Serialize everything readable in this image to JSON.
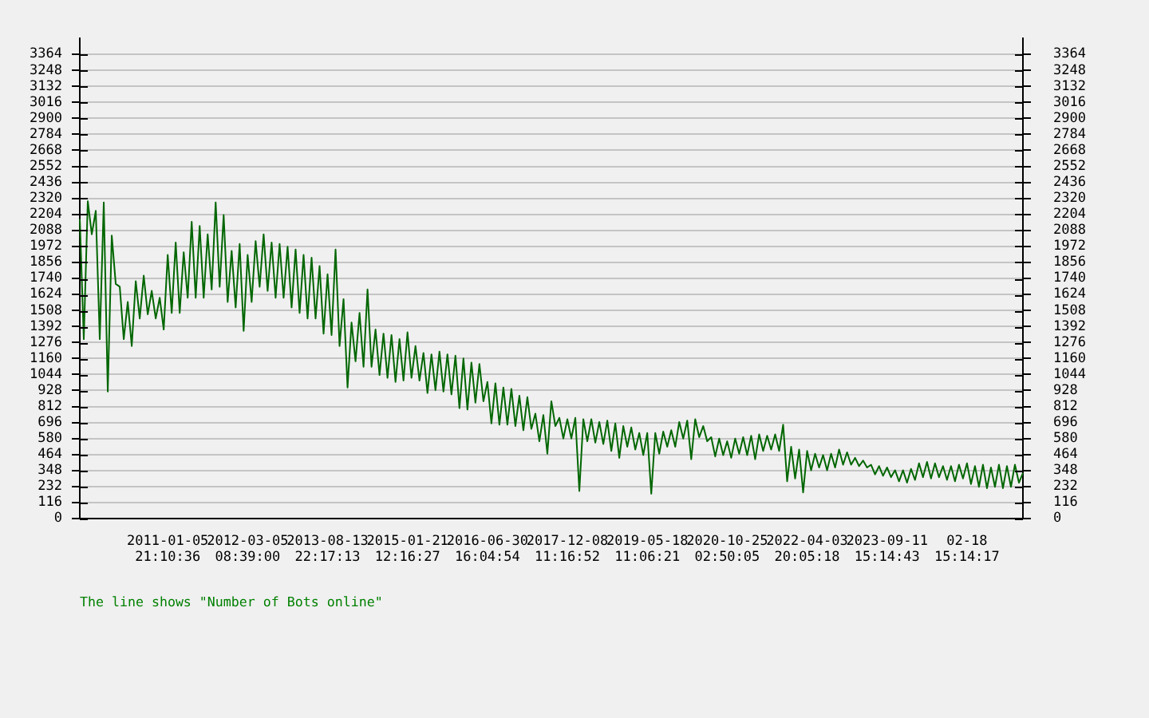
{
  "chart_data": {
    "type": "line",
    "categories": [
      null,
      null,
      null,
      null,
      null,
      null,
      null,
      null,
      null,
      null,
      null,
      null,
      null,
      null,
      null,
      null,
      null,
      null,
      null,
      null,
      null,
      null,
      "2011-01-05 21:10:36",
      null,
      null,
      null,
      null,
      null,
      null,
      null,
      null,
      null,
      null,
      null,
      null,
      null,
      null,
      null,
      null,
      null,
      null,
      null,
      "2012-03-05 08:39:00",
      null,
      null,
      null,
      null,
      null,
      null,
      null,
      null,
      null,
      null,
      null,
      null,
      null,
      null,
      null,
      null,
      null,
      null,
      null,
      "2013-08-13 22:17:13",
      null,
      null,
      null,
      null,
      null,
      null,
      null,
      null,
      null,
      null,
      null,
      null,
      null,
      null,
      null,
      null,
      null,
      null,
      null,
      "2015-01-21 12:16:27",
      null,
      null,
      null,
      null,
      null,
      null,
      null,
      null,
      null,
      null,
      null,
      null,
      null,
      null,
      null,
      null,
      null,
      null,
      null,
      "2016-06-30 16:04:54",
      null,
      null,
      null,
      null,
      null,
      null,
      null,
      null,
      null,
      null,
      null,
      null,
      null,
      null,
      null,
      null,
      null,
      null,
      null,
      "2017-12-08 11:16:52",
      null,
      null,
      null,
      null,
      null,
      null,
      null,
      null,
      null,
      null,
      null,
      null,
      null,
      null,
      null,
      null,
      null,
      null,
      null,
      "2019-05-18 11:06:21",
      null,
      null,
      null,
      null,
      null,
      null,
      null,
      null,
      null,
      null,
      null,
      null,
      null,
      null,
      null,
      null,
      null,
      null,
      null,
      "2020-10-25 02:50:05",
      null,
      null,
      null,
      null,
      null,
      null,
      null,
      null,
      null,
      null,
      null,
      null,
      null,
      null,
      null,
      null,
      null,
      null,
      null,
      "2022-04-03 20:05:18",
      null,
      null,
      null,
      null,
      null,
      null,
      null,
      null,
      null,
      null,
      null,
      null,
      null,
      null,
      null,
      null,
      null,
      null,
      null,
      "2023-09-11 15:14:43",
      null,
      null,
      null,
      null,
      null,
      null,
      null,
      null,
      null,
      null,
      null,
      null,
      null,
      null,
      null,
      null,
      null,
      null,
      null,
      "02-18 15:14:17",
      null,
      null,
      null,
      null,
      null,
      null,
      null,
      null,
      null,
      null,
      null,
      null,
      null,
      null
    ],
    "values": [
      2170,
      1300,
      2300,
      2060,
      2230,
      1300,
      2290,
      920,
      2050,
      1700,
      1680,
      1300,
      1570,
      1250,
      1720,
      1450,
      1760,
      1480,
      1650,
      1450,
      1600,
      1370,
      1910,
      1490,
      2000,
      1490,
      1930,
      1600,
      2150,
      1600,
      2120,
      1600,
      2060,
      1660,
      2290,
      1680,
      2200,
      1570,
      1940,
      1530,
      1990,
      1360,
      1910,
      1570,
      2010,
      1680,
      2060,
      1650,
      2000,
      1600,
      1990,
      1600,
      1970,
      1530,
      1950,
      1490,
      1910,
      1450,
      1890,
      1450,
      1830,
      1340,
      1770,
      1330,
      1950,
      1250,
      1590,
      950,
      1420,
      1140,
      1490,
      1100,
      1660,
      1100,
      1370,
      1040,
      1340,
      1020,
      1330,
      990,
      1300,
      1000,
      1350,
      1020,
      1250,
      1000,
      1200,
      910,
      1190,
      930,
      1210,
      920,
      1190,
      900,
      1180,
      800,
      1160,
      790,
      1130,
      840,
      1120,
      850,
      990,
      690,
      980,
      680,
      950,
      680,
      940,
      670,
      890,
      640,
      880,
      650,
      760,
      560,
      750,
      470,
      850,
      670,
      730,
      580,
      720,
      580,
      730,
      200,
      720,
      560,
      720,
      550,
      700,
      540,
      710,
      490,
      690,
      440,
      670,
      520,
      660,
      500,
      620,
      460,
      620,
      180,
      620,
      470,
      630,
      520,
      640,
      520,
      700,
      580,
      710,
      430,
      720,
      590,
      670,
      560,
      590,
      450,
      580,
      460,
      560,
      440,
      580,
      470,
      590,
      460,
      600,
      430,
      610,
      490,
      600,
      500,
      610,
      490,
      680,
      270,
      520,
      290,
      500,
      190,
      490,
      350,
      470,
      370,
      460,
      350,
      470,
      370,
      500,
      390,
      480,
      390,
      440,
      380,
      420,
      370,
      390,
      320,
      380,
      310,
      370,
      300,
      350,
      270,
      350,
      260,
      360,
      280,
      400,
      300,
      410,
      290,
      400,
      300,
      380,
      280,
      380,
      270,
      390,
      290,
      400,
      250,
      380,
      230,
      390,
      220,
      370,
      230,
      390,
      220,
      380,
      230,
      390,
      260,
      330
    ],
    "color": "#006600",
    "marker": "none",
    "grid": "y",
    "legend": false,
    "ylim": [
      0,
      3480
    ],
    "yticks": [
      0,
      116,
      232,
      348,
      464,
      580,
      696,
      812,
      928,
      1044,
      1160,
      1276,
      1392,
      1508,
      1624,
      1740,
      1856,
      1972,
      2088,
      2204,
      2320,
      2436,
      2552,
      2668,
      2784,
      2900,
      3016,
      3132,
      3248,
      3364
    ],
    "y2lim": [
      0,
      3480
    ],
    "y2ticks": [
      0,
      116,
      232,
      348,
      464,
      580,
      696,
      812,
      928,
      1044,
      1160,
      1276,
      1392,
      1508,
      1624,
      1740,
      1856,
      1972,
      2088,
      2204,
      2320,
      2436,
      2552,
      2668,
      2784,
      2900,
      3016,
      3132,
      3248,
      3364
    ],
    "annotations": [
      "The line shows \"Number of Bots online\""
    ]
  }
}
